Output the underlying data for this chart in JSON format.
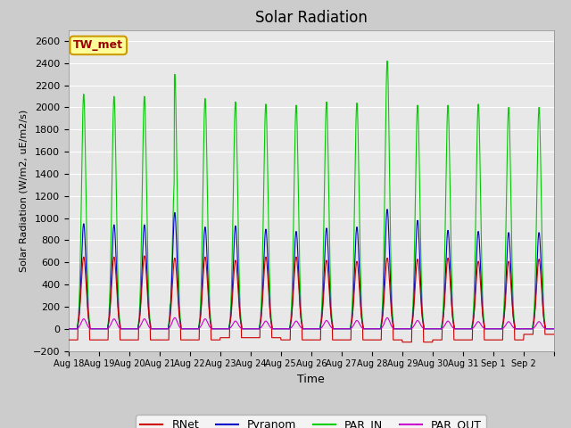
{
  "title": "Solar Radiation",
  "xlabel": "Time",
  "ylabel": "Solar Radiation (W/m2, uE/m2/s)",
  "ylim": [
    -200,
    2700
  ],
  "yticks": [
    -200,
    0,
    200,
    400,
    600,
    800,
    1000,
    1200,
    1400,
    1600,
    1800,
    2000,
    2200,
    2400,
    2600
  ],
  "date_labels": [
    "Aug 18",
    "Aug 19",
    "Aug 20",
    "Aug 21",
    "Aug 22",
    "Aug 23",
    "Aug 24",
    "Aug 25",
    "Aug 26",
    "Aug 27",
    "Aug 28",
    "Aug 29",
    "Aug 30",
    "Aug 31",
    "Sep 1",
    "Sep 2"
  ],
  "colors": {
    "RNet": "#cc0000",
    "Pyranom": "#0000cc",
    "PAR_IN": "#00cc00",
    "PAR_OUT": "#cc00cc"
  },
  "legend_entries": [
    "RNet",
    "Pyranom",
    "PAR_IN",
    "PAR_OUT"
  ],
  "annotation_text": "TW_met",
  "annotation_fg": "#990000",
  "annotation_bg": "#ffff99",
  "annotation_edge": "#cc9900",
  "fig_facecolor": "#cccccc",
  "plot_bg_color": "#e8e8e8",
  "grid_color": "#ffffff",
  "title_fontsize": 12,
  "axis_fontsize": 8,
  "n_days": 16,
  "points_per_day": 96,
  "peak_rnet": [
    650,
    650,
    660,
    640,
    650,
    620,
    650,
    650,
    620,
    610,
    640,
    630,
    640,
    610,
    610,
    630
  ],
  "peak_pyranom": [
    950,
    940,
    940,
    1050,
    920,
    930,
    900,
    880,
    910,
    920,
    1080,
    980,
    890,
    880,
    870,
    870
  ],
  "peak_par_in": [
    2120,
    2100,
    2100,
    2300,
    2080,
    2050,
    2030,
    2020,
    2050,
    2040,
    2420,
    2020,
    2020,
    2030,
    2000,
    2000
  ],
  "peak_par_out": [
    90,
    90,
    90,
    100,
    90,
    70,
    70,
    70,
    75,
    75,
    100,
    75,
    70,
    65,
    65,
    65
  ],
  "night_rnet": [
    -100,
    -100,
    -100,
    -100,
    -100,
    -80,
    -80,
    -100,
    -100,
    -100,
    -100,
    -120,
    -100,
    -100,
    -100,
    -50
  ]
}
